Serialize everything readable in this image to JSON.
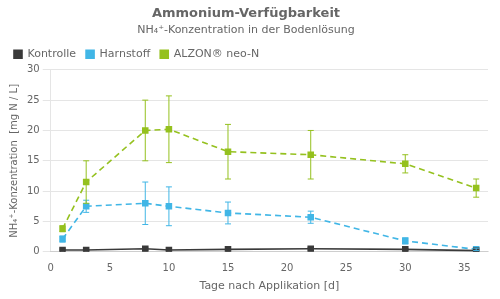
{
  "chart_data": {
    "type": "line",
    "title": "Ammonium-Verfügbarkeit",
    "subtitle": "NH₄⁺-Konzentration in der Bodenlösung",
    "x_label": "Tage nach Applikation [d]",
    "y_label": "NH₄⁺-Konzentration  [mg N / L]",
    "xlim": [
      0,
      37
    ],
    "xticks": [
      0,
      5,
      10,
      15,
      20,
      25,
      30,
      35
    ],
    "ylim": [
      0,
      30
    ],
    "yticks": [
      0,
      5,
      10,
      15,
      20,
      25,
      30
    ],
    "grid": "y",
    "legend": "upper left",
    "series": [
      {
        "name": "Kontrolle",
        "color": "#3a3a3a",
        "marker": "square",
        "line_style": "solid",
        "x": [
          1,
          3,
          8,
          10,
          15,
          22,
          30,
          36
        ],
        "values": [
          0.3,
          0.3,
          0.5,
          0.3,
          0.4,
          0.5,
          0.4,
          0.2
        ],
        "error_low": [
          0.15,
          0.1,
          0.25,
          0.15,
          0.15,
          0.2,
          0.15,
          0.1
        ],
        "error_high": [
          0.15,
          0.1,
          0.25,
          0.15,
          0.15,
          0.2,
          0.15,
          0.1
        ]
      },
      {
        "name": "Harnstoff",
        "color": "#41b6e6",
        "marker": "square",
        "line_style": "dashed",
        "x": [
          1,
          3,
          8,
          10,
          15,
          22,
          30,
          36
        ],
        "values": [
          2.1,
          7.5,
          8.0,
          7.5,
          6.4,
          5.7,
          1.8,
          0.4
        ],
        "error_low": [
          0.5,
          1.0,
          3.5,
          3.2,
          1.8,
          1.0,
          0.5,
          0.2
        ],
        "error_high": [
          0.5,
          1.0,
          3.5,
          3.2,
          1.8,
          1.0,
          0.5,
          0.2
        ]
      },
      {
        "name": "ALZON® neo-N",
        "color": "#95c11f",
        "marker": "square",
        "line_style": "dashed",
        "x": [
          1,
          3,
          8,
          10,
          15,
          22,
          30,
          36
        ],
        "values": [
          3.8,
          11.5,
          20.0,
          20.2,
          16.5,
          16.0,
          14.5,
          10.5
        ],
        "error_low": [
          0.5,
          3.5,
          5.0,
          5.5,
          4.5,
          4.0,
          1.5,
          1.5
        ],
        "error_high": [
          0.5,
          3.5,
          5.0,
          5.5,
          4.5,
          4.0,
          1.5,
          1.5
        ]
      }
    ]
  }
}
